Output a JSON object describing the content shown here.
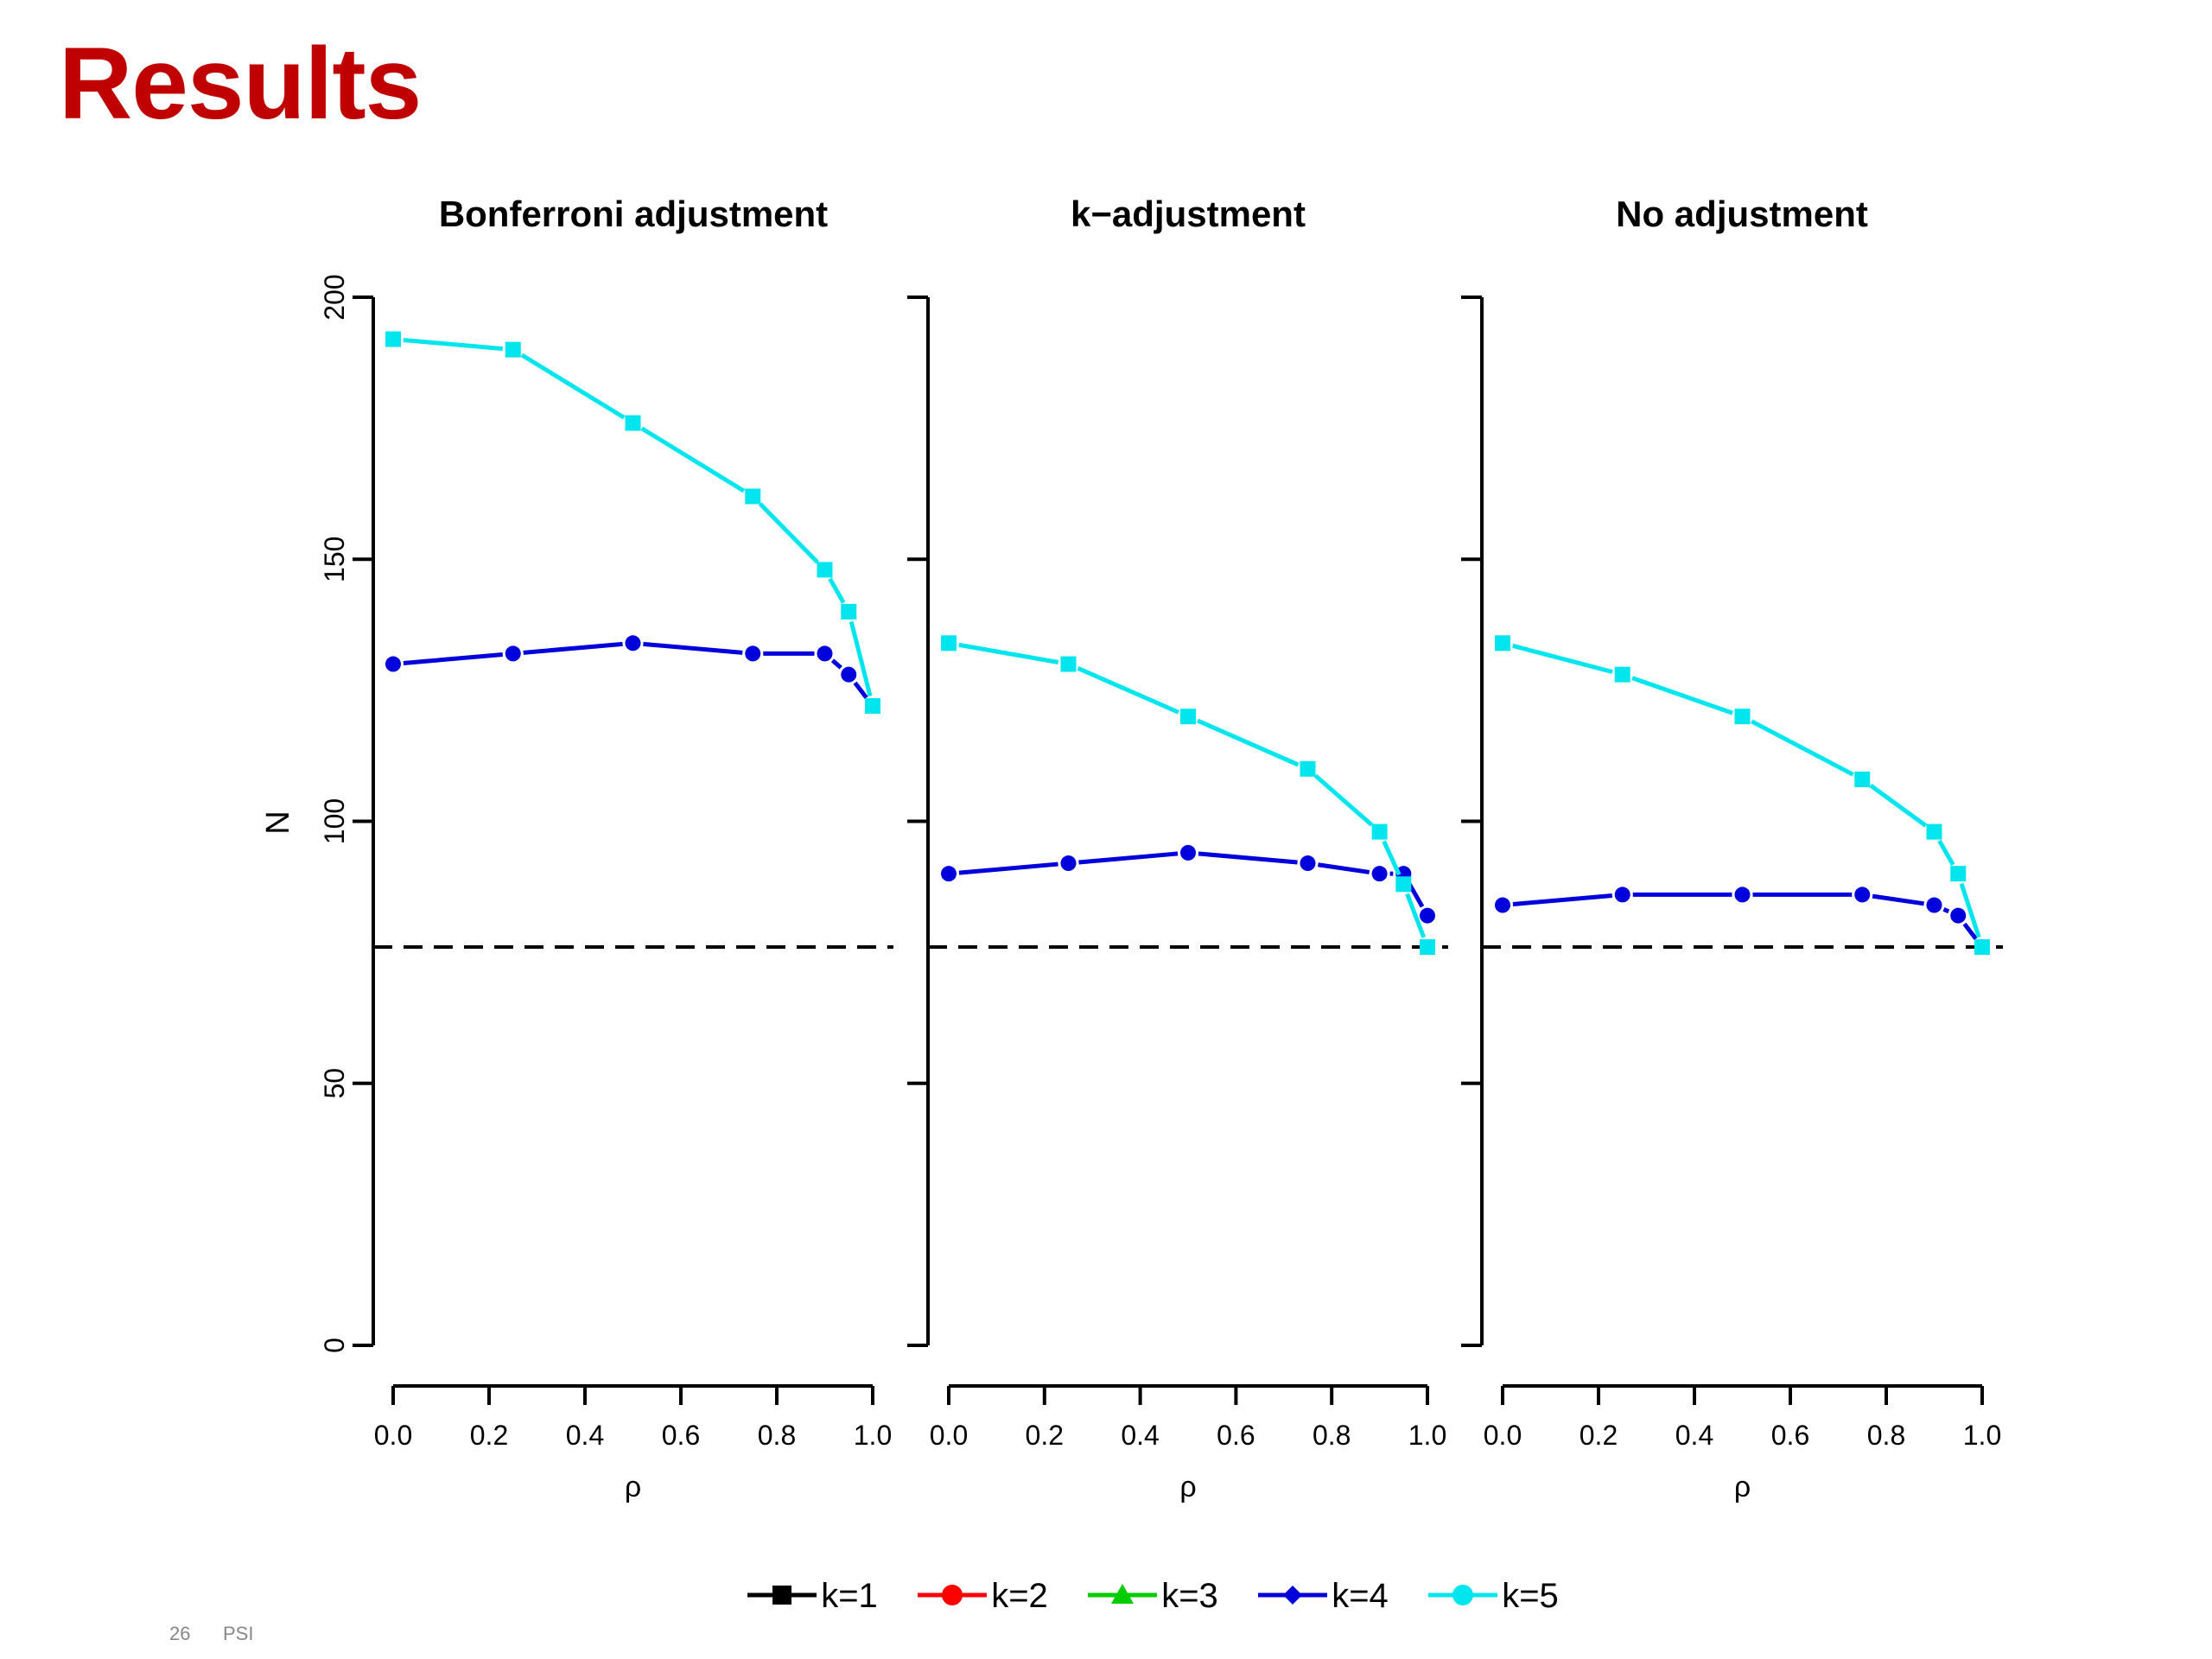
{
  "slide": {
    "title": "Results",
    "title_color": "#c00000",
    "footer_page": "26",
    "footer_text": "PSI"
  },
  "chart_data": [
    {
      "type": "line",
      "title": "Bonferroni adjustment",
      "xlabel": "ρ",
      "ylabel": "N",
      "xlim": [
        0,
        1
      ],
      "ylim": [
        0,
        200
      ],
      "xticks": [
        "0.0",
        "0.2",
        "0.4",
        "0.6",
        "0.8",
        "1.0"
      ],
      "yticks": [
        "0",
        "50",
        "100",
        "150",
        "200"
      ],
      "x": [
        0,
        0.25,
        0.5,
        0.75,
        0.9,
        0.95,
        1.0
      ],
      "reference_line": 76,
      "series": [
        {
          "name": "k=4",
          "color": "#0000dd",
          "marker": "circle",
          "values": [
            130,
            132,
            134,
            132,
            132,
            128,
            122
          ]
        },
        {
          "name": "k=5",
          "color": "#00e5ee",
          "marker": "square",
          "values": [
            192,
            190,
            176,
            162,
            148,
            140,
            122
          ]
        }
      ]
    },
    {
      "type": "line",
      "title": "k−adjustment",
      "xlabel": "ρ",
      "xlim": [
        0,
        1
      ],
      "ylim": [
        0,
        200
      ],
      "xticks": [
        "0.0",
        "0.2",
        "0.4",
        "0.6",
        "0.8",
        "1.0"
      ],
      "x": [
        0,
        0.25,
        0.5,
        0.75,
        0.9,
        0.95,
        1.0
      ],
      "reference_line": 76,
      "series": [
        {
          "name": "k=4",
          "color": "#0000dd",
          "marker": "circle",
          "values": [
            90,
            92,
            94,
            92,
            90,
            90,
            82
          ]
        },
        {
          "name": "k=5",
          "color": "#00e5ee",
          "marker": "square",
          "values": [
            134,
            130,
            120,
            110,
            98,
            88,
            76
          ]
        }
      ]
    },
    {
      "type": "line",
      "title": "No adjustment",
      "xlabel": "ρ",
      "xlim": [
        0,
        1
      ],
      "ylim": [
        0,
        200
      ],
      "xticks": [
        "0.0",
        "0.2",
        "0.4",
        "0.6",
        "0.8",
        "1.0"
      ],
      "x": [
        0,
        0.25,
        0.5,
        0.75,
        0.9,
        0.95,
        1.0
      ],
      "reference_line": 76,
      "series": [
        {
          "name": "k=4",
          "color": "#0000dd",
          "marker": "circle",
          "values": [
            84,
            86,
            86,
            86,
            84,
            82,
            76
          ]
        },
        {
          "name": "k=5",
          "color": "#00e5ee",
          "marker": "square",
          "values": [
            134,
            128,
            120,
            108,
            98,
            90,
            76
          ]
        }
      ]
    }
  ],
  "legend": {
    "position": "bottom",
    "entries": [
      {
        "label": "k=1",
        "color": "#000000",
        "marker": "square"
      },
      {
        "label": "k=2",
        "color": "#ff0000",
        "marker": "circle"
      },
      {
        "label": "k=3",
        "color": "#00cc00",
        "marker": "triangle"
      },
      {
        "label": "k=4",
        "color": "#0000dd",
        "marker": "diamond"
      },
      {
        "label": "k=5",
        "color": "#00e5ee",
        "marker": "circle"
      }
    ]
  }
}
